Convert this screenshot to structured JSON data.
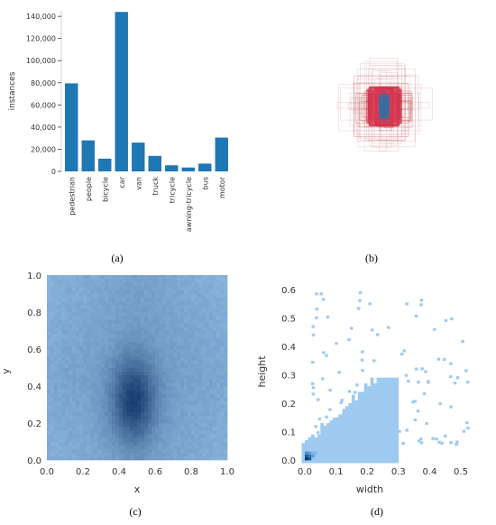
{
  "panels": {
    "a": {
      "caption": "(a)"
    },
    "b": {
      "caption": "(b)"
    },
    "c": {
      "caption": "(c)"
    },
    "d": {
      "caption": "(d)"
    }
  },
  "colors": {
    "bar": "#1f77b4",
    "hist_light": "#9ecaf0",
    "hist_dark": "#0a3a6a",
    "box_red": "#c44e52"
  },
  "chart_data": [
    {
      "id": "a",
      "type": "bar",
      "categories": [
        "pedestrian",
        "people",
        "bicycle",
        "car",
        "van",
        "truck",
        "tricycle",
        "awning-tricycle",
        "bus",
        "motor"
      ],
      "values": [
        79500,
        28000,
        11500,
        144000,
        26000,
        14000,
        5500,
        3500,
        7000,
        30500
      ],
      "ylabel": "instances",
      "ylim": [
        0,
        145000
      ],
      "yticks": [
        0,
        20000,
        40000,
        60000,
        80000,
        100000,
        120000,
        140000
      ],
      "ytick_labels": [
        "0",
        "20,000",
        "40,000",
        "60,000",
        "80,000",
        "100,000",
        "120,000",
        "140,000"
      ]
    },
    {
      "id": "b",
      "type": "other",
      "description_of_marks": "overlaid bounding boxes centered at the same point",
      "colors": [
        "#c44e52",
        "#1f77b4"
      ]
    },
    {
      "id": "c",
      "type": "heatmap",
      "xlabel": "x",
      "ylabel": "y",
      "xlim": [
        0,
        1
      ],
      "ylim": [
        0,
        1
      ],
      "xticks": [
        0.0,
        0.2,
        0.4,
        0.6,
        0.8,
        1.0
      ],
      "xtick_labels": [
        "0.0",
        "0.2",
        "0.4",
        "0.6",
        "0.8",
        "1.0"
      ],
      "yticks": [
        0.0,
        0.2,
        0.4,
        0.6,
        0.8,
        1.0
      ],
      "ytick_labels": [
        "0.0",
        "0.2",
        "0.4",
        "0.6",
        "0.8",
        "1.0"
      ],
      "hotspot": {
        "x": 0.48,
        "y": 0.32
      }
    },
    {
      "id": "d",
      "type": "heatmap",
      "xlabel": "width",
      "ylabel": "height",
      "xlim": [
        -0.02,
        0.54
      ],
      "ylim": [
        -0.02,
        0.66
      ],
      "xticks": [
        0.0,
        0.1,
        0.2,
        0.3,
        0.4,
        0.5
      ],
      "xtick_labels": [
        "0.0",
        "0.1",
        "0.2",
        "0.3",
        "0.4",
        "0.5"
      ],
      "yticks": [
        0.0,
        0.1,
        0.2,
        0.3,
        0.4,
        0.5,
        0.6
      ],
      "ytick_labels": [
        "0.0",
        "0.1",
        "0.2",
        "0.3",
        "0.4",
        "0.5",
        "0.6"
      ],
      "hotspot": {
        "x": 0.01,
        "y": 0.02
      }
    }
  ]
}
